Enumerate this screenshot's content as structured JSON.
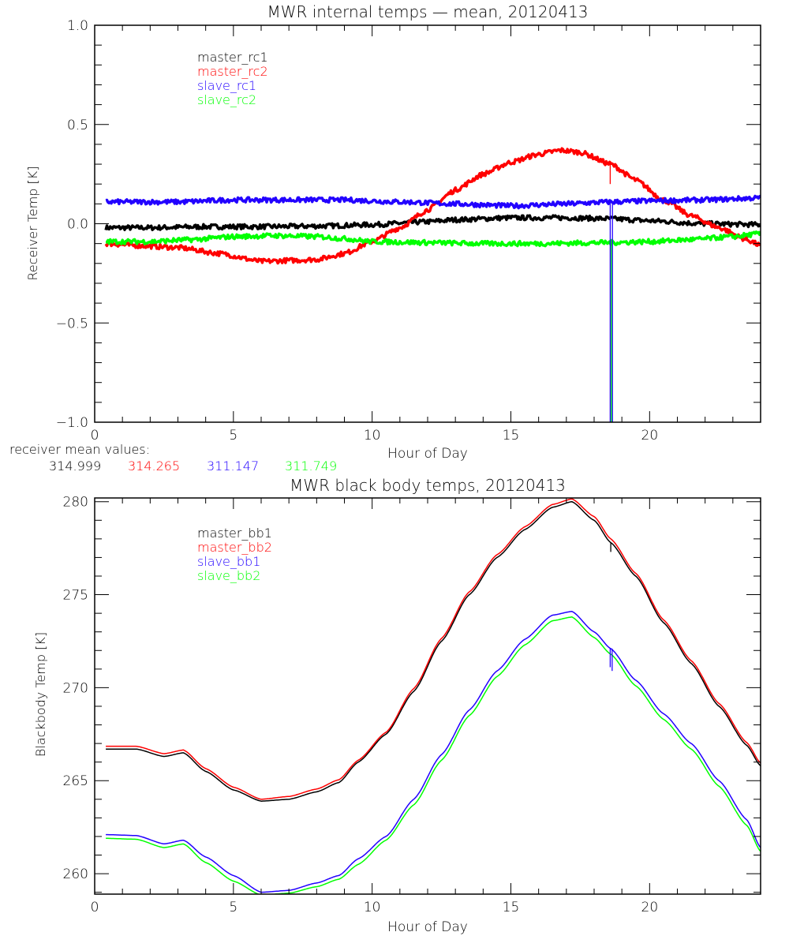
{
  "chart_data": [
    {
      "type": "line",
      "title": "MWR internal temps — mean, 20120413",
      "xlabel": "Hour of Day",
      "ylabel": "Receiver Temp [K]",
      "xlim": [
        0,
        24
      ],
      "ylim": [
        -1.0,
        1.0
      ],
      "xticks": [
        0,
        5,
        10,
        15,
        20
      ],
      "xtick_labels": [
        "0",
        "5",
        "10",
        "15",
        "20"
      ],
      "yticks": [
        -1.0,
        -0.5,
        0.0,
        0.5,
        1.0
      ],
      "ytick_labels": [
        "−1.0",
        "−0.5",
        "0.0",
        "0.5",
        "1.0"
      ],
      "grid": false,
      "legend_position": "top-left",
      "series": [
        {
          "name": "master_rc1",
          "color": "#000000",
          "x": [
            0.4,
            2,
            4,
            6,
            8,
            10,
            12,
            13,
            15,
            17,
            18.6,
            20,
            22,
            24
          ],
          "y": [
            -0.02,
            -0.02,
            -0.015,
            -0.015,
            -0.012,
            -0.005,
            0.01,
            0.02,
            0.03,
            0.03,
            0.025,
            0.015,
            0.0,
            -0.005
          ]
        },
        {
          "name": "master_rc2",
          "color": "#ff0000",
          "x": [
            0.4,
            1.5,
            3,
            4.5,
            6,
            7,
            8,
            9,
            10,
            11,
            12,
            13,
            14,
            15,
            16,
            16.8,
            17.5,
            18.6,
            19.5,
            20.5,
            21.5,
            22.5,
            23.5,
            24
          ],
          "y": [
            -0.1,
            -0.11,
            -0.12,
            -0.15,
            -0.19,
            -0.185,
            -0.18,
            -0.15,
            -0.09,
            -0.02,
            0.07,
            0.17,
            0.25,
            0.31,
            0.35,
            0.37,
            0.36,
            0.3,
            0.22,
            0.12,
            0.04,
            -0.02,
            -0.08,
            -0.11
          ]
        },
        {
          "name": "slave_rc1",
          "color": "#2200ff",
          "x": [
            0.4,
            3,
            5,
            7,
            9,
            11,
            13,
            15,
            17,
            18.6,
            20,
            22,
            24
          ],
          "y": [
            0.11,
            0.11,
            0.12,
            0.12,
            0.12,
            0.11,
            0.1,
            0.09,
            0.1,
            0.11,
            0.115,
            0.12,
            0.13
          ]
        },
        {
          "name": "slave_rc2",
          "color": "#00ff00",
          "x": [
            0.4,
            2,
            3.5,
            5,
            6.5,
            8,
            9,
            10,
            12,
            14,
            16,
            18.6,
            20,
            21.5,
            23,
            24
          ],
          "y": [
            -0.09,
            -0.09,
            -0.08,
            -0.065,
            -0.06,
            -0.065,
            -0.075,
            -0.09,
            -0.095,
            -0.1,
            -0.1,
            -0.095,
            -0.09,
            -0.08,
            -0.065,
            -0.05
          ]
        }
      ],
      "spikes": [
        {
          "series": "slave_rc2",
          "x": 18.62,
          "y_from": -0.1,
          "y_to": -1.0,
          "color": "#00ff00"
        },
        {
          "series": "slave_rc1",
          "x": 18.58,
          "y_from": 0.11,
          "y_to": -1.0,
          "color": "#2200ff"
        },
        {
          "series": "slave_rc1",
          "x": 18.66,
          "y_from": 0.11,
          "y_to": -1.0,
          "color": "#2200ff"
        },
        {
          "series": "master_rc2",
          "x": 18.58,
          "y_from": 0.3,
          "y_to": 0.2,
          "color": "#ff0000"
        }
      ]
    },
    {
      "type": "line",
      "title": "MWR black body temps, 20120413",
      "xlabel": "Hour of Day",
      "ylabel": "Blackbody Temp [K]",
      "xlim": [
        0,
        24
      ],
      "ylim": [
        258.9,
        280.2
      ],
      "xticks": [
        0,
        5,
        10,
        15,
        20
      ],
      "xtick_labels": [
        "0",
        "5",
        "10",
        "15",
        "20"
      ],
      "yticks": [
        260,
        265,
        270,
        275,
        280
      ],
      "ytick_labels": [
        "260",
        "265",
        "270",
        "275",
        "280"
      ],
      "grid": false,
      "legend_position": "top-left",
      "series": [
        {
          "name": "master_bb1",
          "color": "#000000",
          "x": [
            0.4,
            1.5,
            2.5,
            3.2,
            4,
            5,
            6,
            7,
            8,
            8.8,
            9.5,
            10.5,
            11.5,
            12.5,
            13.5,
            14.5,
            15.5,
            16.5,
            17.2,
            18,
            18.6,
            19.5,
            20.5,
            21.5,
            22.5,
            23.5,
            24
          ],
          "y": [
            266.7,
            266.7,
            266.3,
            266.5,
            265.5,
            264.5,
            263.9,
            264.0,
            264.4,
            264.9,
            266.0,
            267.5,
            269.8,
            272.5,
            275.0,
            277.0,
            278.5,
            279.7,
            280.0,
            279.0,
            277.8,
            276.0,
            273.5,
            271.3,
            269.0,
            266.9,
            265.8
          ]
        },
        {
          "name": "master_bb2",
          "color": "#ff0000",
          "x": [
            0.4,
            1.5,
            2.5,
            3.2,
            4,
            5,
            6,
            7,
            8,
            8.8,
            9.5,
            10.5,
            11.5,
            12.5,
            13.5,
            14.5,
            15.5,
            16.5,
            17.2,
            18,
            18.6,
            19.5,
            20.5,
            21.5,
            22.5,
            23.5,
            24
          ],
          "y": [
            266.85,
            266.85,
            266.45,
            266.65,
            265.65,
            264.65,
            264.0,
            264.15,
            264.55,
            265.05,
            266.1,
            267.6,
            269.95,
            272.65,
            275.15,
            277.15,
            278.65,
            279.85,
            280.15,
            279.2,
            278.0,
            276.15,
            273.65,
            271.45,
            269.15,
            267.05,
            265.95
          ]
        },
        {
          "name": "slave_bb1",
          "color": "#2200ff",
          "x": [
            0.4,
            1.5,
            2.5,
            3.2,
            4,
            5,
            6,
            7,
            8,
            8.8,
            9.5,
            10.5,
            11.5,
            12.5,
            13.5,
            14.5,
            15.5,
            16.5,
            17.2,
            18,
            18.6,
            19.5,
            20.5,
            21.5,
            22.5,
            23.5,
            24
          ],
          "y": [
            262.1,
            262.05,
            261.6,
            261.8,
            260.9,
            259.9,
            259.0,
            259.1,
            259.5,
            259.9,
            260.8,
            262.0,
            264.0,
            266.4,
            268.8,
            270.9,
            272.6,
            273.9,
            274.1,
            273.0,
            272.1,
            270.4,
            268.6,
            267.0,
            265.0,
            262.9,
            261.4
          ]
        },
        {
          "name": "slave_bb2",
          "color": "#00ff00",
          "x": [
            0.4,
            1.5,
            2.5,
            3.2,
            4,
            5,
            6,
            7,
            8,
            8.8,
            9.5,
            10.5,
            11.5,
            12.5,
            13.5,
            14.5,
            15.5,
            16.5,
            17.2,
            18,
            18.6,
            19.5,
            20.5,
            21.5,
            22.5,
            23.5,
            24
          ],
          "y": [
            261.9,
            261.85,
            261.4,
            261.6,
            260.6,
            259.6,
            258.85,
            258.95,
            259.3,
            259.7,
            260.5,
            261.8,
            263.7,
            266.1,
            268.5,
            270.6,
            272.3,
            273.6,
            273.8,
            272.7,
            271.8,
            270.1,
            268.3,
            266.7,
            264.7,
            262.6,
            261.2
          ]
        }
      ],
      "spikes": [
        {
          "series": "master_bb1",
          "x": 18.6,
          "y_from": 277.8,
          "y_to": 277.3,
          "color": "#000000"
        },
        {
          "series": "slave_bb1",
          "x": 18.58,
          "y_from": 272.1,
          "y_to": 271.1,
          "color": "#2200ff"
        },
        {
          "series": "slave_bb1",
          "x": 18.65,
          "y_from": 272.1,
          "y_to": 270.9,
          "color": "#2200ff"
        }
      ]
    }
  ],
  "receiver_mean": {
    "label": "receiver mean values:",
    "values": [
      {
        "text": "314.999",
        "color": "#000000"
      },
      {
        "text": "314.265",
        "color": "#ff0000"
      },
      {
        "text": "311.147",
        "color": "#2200ff"
      },
      {
        "text": "311.749",
        "color": "#00ff00"
      }
    ]
  }
}
